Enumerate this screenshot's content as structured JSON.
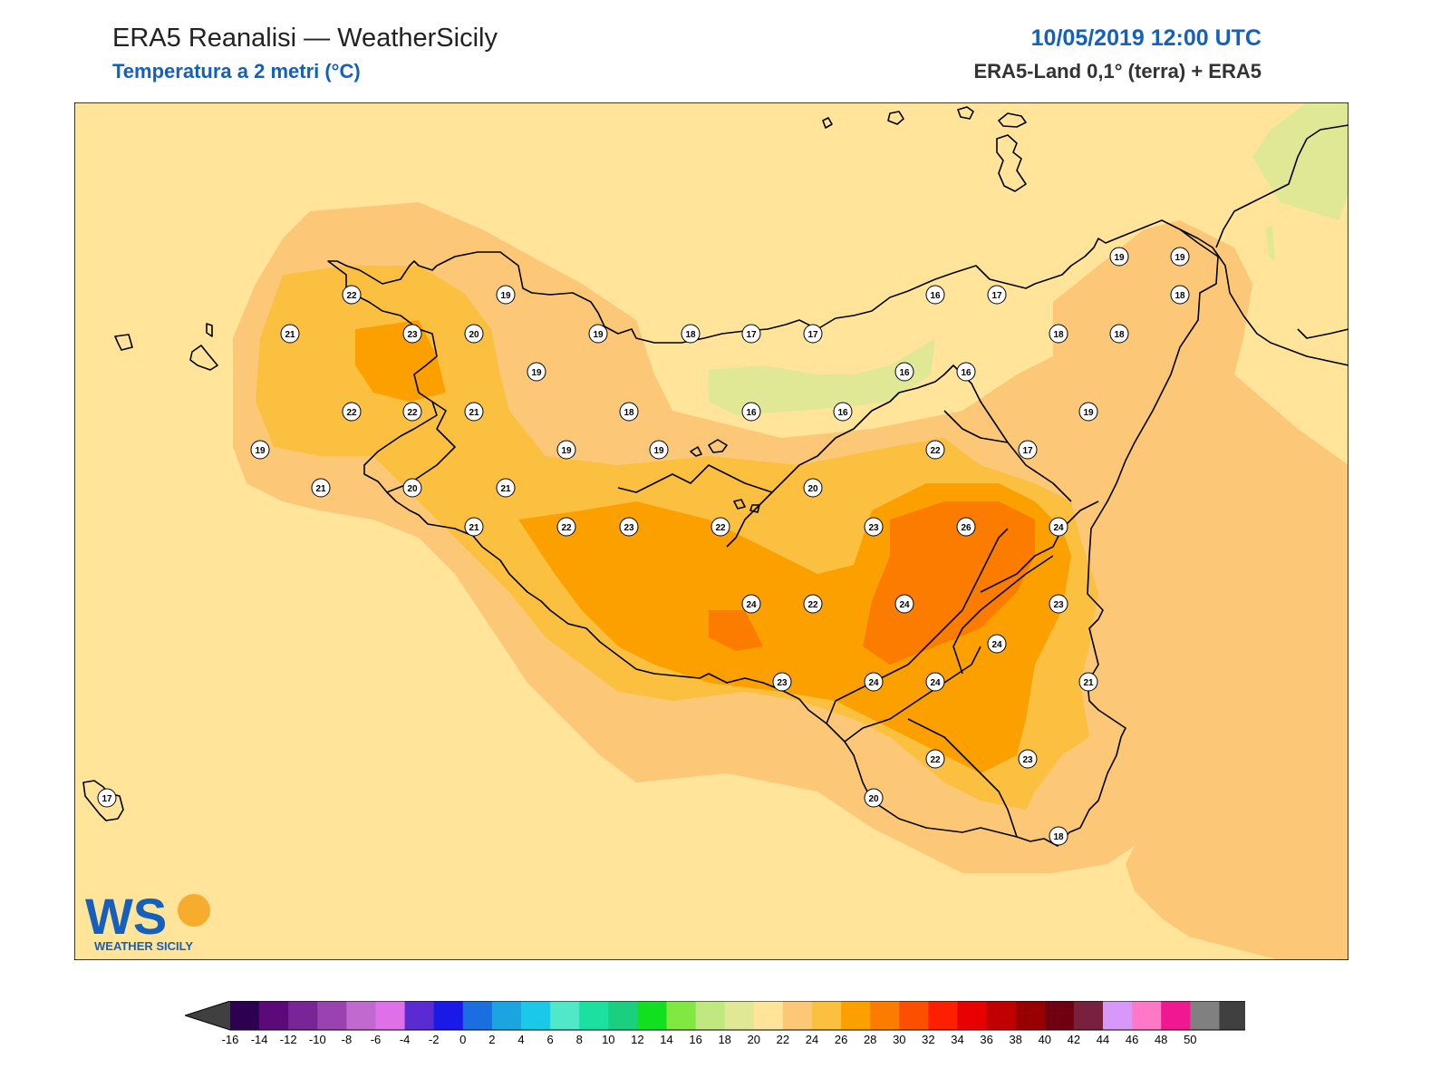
{
  "header": {
    "title": "ERA5 Reanalisi — WeatherSicily",
    "subtitle": "Temperatura a 2 metri (°C)",
    "datetime": "10/05/2019 12:00 UTC",
    "source": "ERA5-Land 0,1° (terra) + ERA5"
  },
  "logo": {
    "text": "WEATHER SICILY",
    "mark": "WS"
  },
  "map": {
    "region": "Sicily",
    "variable": "2m temperature",
    "unit": "°C",
    "stations": [
      {
        "id": "s1",
        "v": "22"
      },
      {
        "id": "s2",
        "v": "19"
      },
      {
        "id": "s3",
        "v": "21"
      },
      {
        "id": "s4",
        "v": "23"
      },
      {
        "id": "s5",
        "v": "20"
      },
      {
        "id": "s6",
        "v": "19"
      },
      {
        "id": "s7",
        "v": "19"
      },
      {
        "id": "s8",
        "v": "22"
      },
      {
        "id": "s9",
        "v": "22"
      },
      {
        "id": "s10",
        "v": "21"
      },
      {
        "id": "s11",
        "v": "18"
      },
      {
        "id": "s12",
        "v": "19"
      },
      {
        "id": "s13",
        "v": "19"
      },
      {
        "id": "s14",
        "v": "19"
      },
      {
        "id": "s15",
        "v": "20"
      },
      {
        "id": "s16",
        "v": "21"
      },
      {
        "id": "s17",
        "v": "21"
      },
      {
        "id": "s18",
        "v": "21"
      },
      {
        "id": "s19",
        "v": "22"
      },
      {
        "id": "s20",
        "v": "23"
      },
      {
        "id": "s21",
        "v": "22"
      },
      {
        "id": "s22",
        "v": "18"
      },
      {
        "id": "s23",
        "v": "17"
      },
      {
        "id": "s24",
        "v": "17"
      },
      {
        "id": "s25",
        "v": "16"
      },
      {
        "id": "s26",
        "v": "16"
      },
      {
        "id": "s27",
        "v": "16"
      },
      {
        "id": "s28",
        "v": "16"
      },
      {
        "id": "s29",
        "v": "17"
      },
      {
        "id": "s30",
        "v": "16"
      },
      {
        "id": "s31",
        "v": "19"
      },
      {
        "id": "s32",
        "v": "19"
      },
      {
        "id": "s33",
        "v": "18"
      },
      {
        "id": "s34",
        "v": "18"
      },
      {
        "id": "s35",
        "v": "18"
      },
      {
        "id": "s36",
        "v": "19"
      },
      {
        "id": "s37",
        "v": "22"
      },
      {
        "id": "s38",
        "v": "17"
      },
      {
        "id": "s39",
        "v": "20"
      },
      {
        "id": "s40",
        "v": "23"
      },
      {
        "id": "s41",
        "v": "26"
      },
      {
        "id": "s42",
        "v": "24"
      },
      {
        "id": "s43",
        "v": "23"
      },
      {
        "id": "s44",
        "v": "24"
      },
      {
        "id": "s45",
        "v": "22"
      },
      {
        "id": "s46",
        "v": "24"
      },
      {
        "id": "s47",
        "v": "24"
      },
      {
        "id": "s48",
        "v": "23"
      },
      {
        "id": "s49",
        "v": "24"
      },
      {
        "id": "s50",
        "v": "24"
      },
      {
        "id": "s51",
        "v": "21"
      },
      {
        "id": "s52",
        "v": "22"
      },
      {
        "id": "s53",
        "v": "23"
      },
      {
        "id": "s54",
        "v": "20"
      },
      {
        "id": "s55",
        "v": "18"
      },
      {
        "id": "s56",
        "v": "17"
      }
    ]
  },
  "colorbar": {
    "labels": [
      "-16",
      "-14",
      "-12",
      "-10",
      "-8",
      "-6",
      "-4",
      "-2",
      "0",
      "2",
      "4",
      "6",
      "8",
      "10",
      "12",
      "14",
      "16",
      "18",
      "20",
      "22",
      "24",
      "26",
      "28",
      "30",
      "32",
      "34",
      "36",
      "38",
      "40",
      "42",
      "44",
      "46",
      "48",
      "50"
    ],
    "colors": [
      "#2d0050",
      "#5c0a7a",
      "#7a2597",
      "#9a42b0",
      "#c06ad0",
      "#e070e8",
      "#5a2bd0",
      "#1a1ae8",
      "#1a6ee0",
      "#1aa4e0",
      "#1ac8e8",
      "#50e8c8",
      "#1ae0a0",
      "#1ad080",
      "#10e020",
      "#80e840",
      "#c0e880",
      "#e0e896",
      "#ffe49a",
      "#fcc878",
      "#fcc040",
      "#fca000",
      "#fc7c00",
      "#fc5000",
      "#fc2000",
      "#e80000",
      "#c00000",
      "#980000",
      "#700010",
      "#782040",
      "#d898f8",
      "#ff78c8",
      "#f01890",
      "#808080",
      "#404040"
    ],
    "left_arrow_color": "#404040",
    "right_arrow_color": "#000000"
  }
}
